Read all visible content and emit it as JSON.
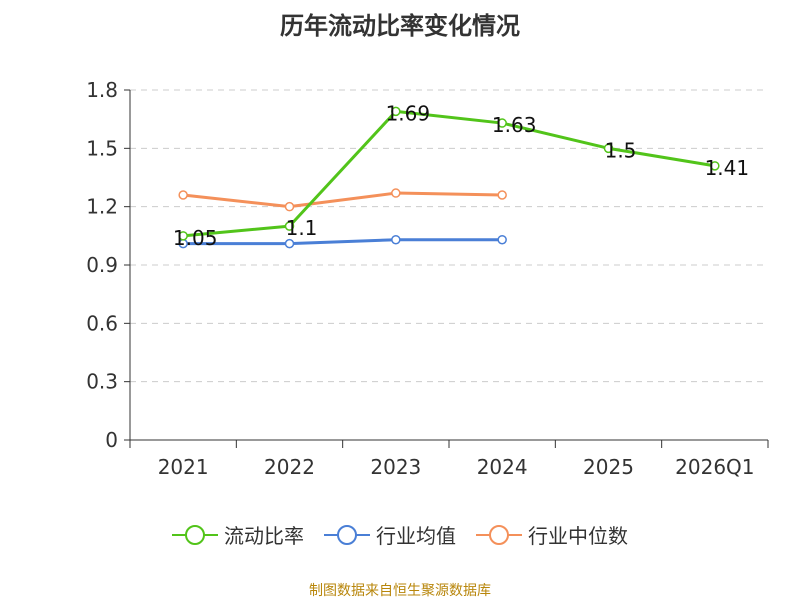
{
  "chart_data": {
    "type": "line",
    "title": "历年流动比率变化情况",
    "categories": [
      "2021",
      "2022",
      "2023",
      "2024",
      "2025",
      "2026Q1"
    ],
    "yticks": [
      "0",
      "0.3",
      "0.6",
      "0.9",
      "1.2",
      "1.5",
      "1.8"
    ],
    "ylim": [
      0,
      1.8
    ],
    "xlabel": "",
    "ylabel": "",
    "grid": true,
    "legend_position": "bottom",
    "series": [
      {
        "name": "流动比率",
        "color": "#52c41a",
        "values": [
          1.05,
          1.1,
          1.69,
          1.63,
          1.5,
          1.41
        ],
        "labels": [
          "1.05",
          "1.1",
          "1.69",
          "1.63",
          "1.5",
          "1.41"
        ],
        "show_labels": true
      },
      {
        "name": "行业均值",
        "color": "#4a7fd6",
        "values": [
          1.01,
          1.01,
          1.03,
          1.03,
          null,
          null
        ],
        "show_labels": false
      },
      {
        "name": "行业中位数",
        "color": "#f4905a",
        "values": [
          1.26,
          1.2,
          1.27,
          1.26,
          null,
          null
        ],
        "show_labels": false
      }
    ]
  },
  "source_text": "制图数据来自恒生聚源数据库"
}
